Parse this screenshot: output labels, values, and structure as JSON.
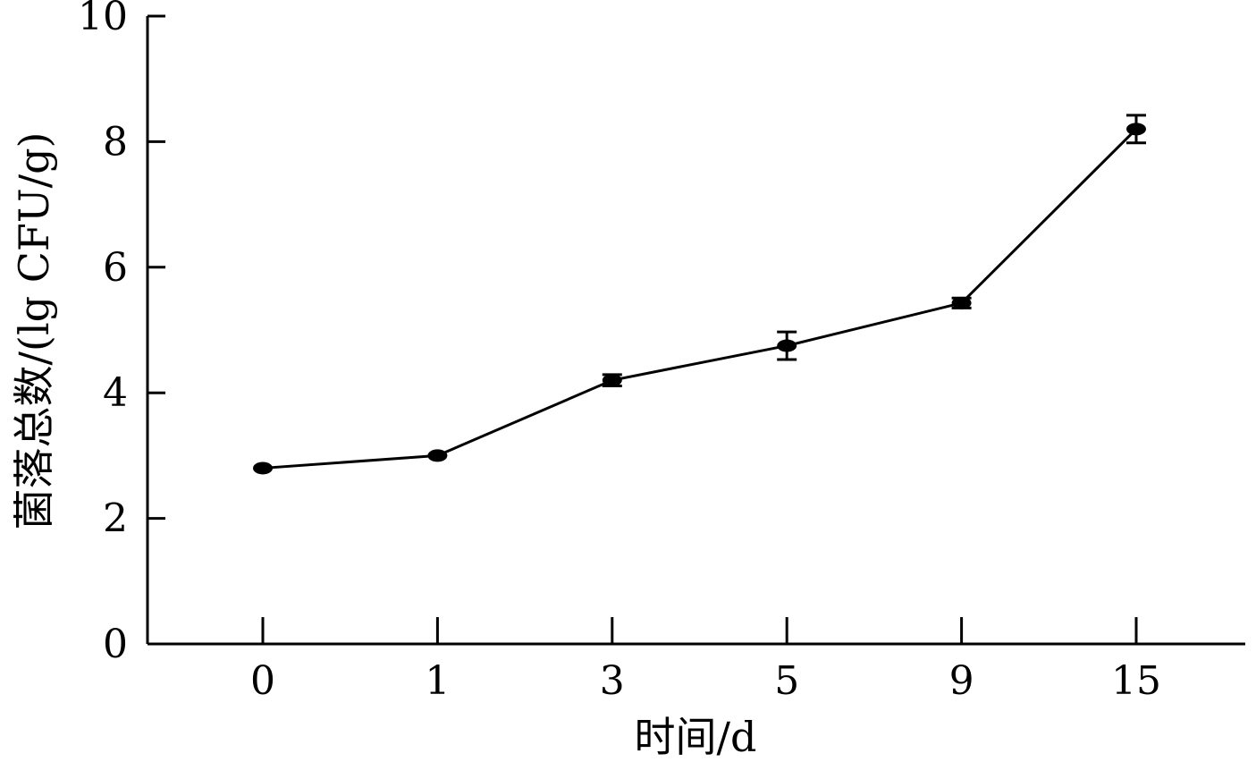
{
  "chart_data": {
    "type": "line",
    "xlabel": "时间/d",
    "ylabel": "菌落总数/(lg CFU/g)",
    "categories": [
      "0",
      "1",
      "3",
      "5",
      "9",
      "15"
    ],
    "ylim": [
      0,
      10
    ],
    "yticks": [
      0,
      2,
      4,
      6,
      8,
      10
    ],
    "series": [
      {
        "values": [
          2.8,
          3.0,
          4.2,
          4.75,
          5.43,
          8.2
        ],
        "errors": [
          0.0,
          0.0,
          0.09,
          0.22,
          0.08,
          0.22
        ]
      }
    ],
    "grid": false,
    "legend": "none",
    "color": "#000000"
  }
}
